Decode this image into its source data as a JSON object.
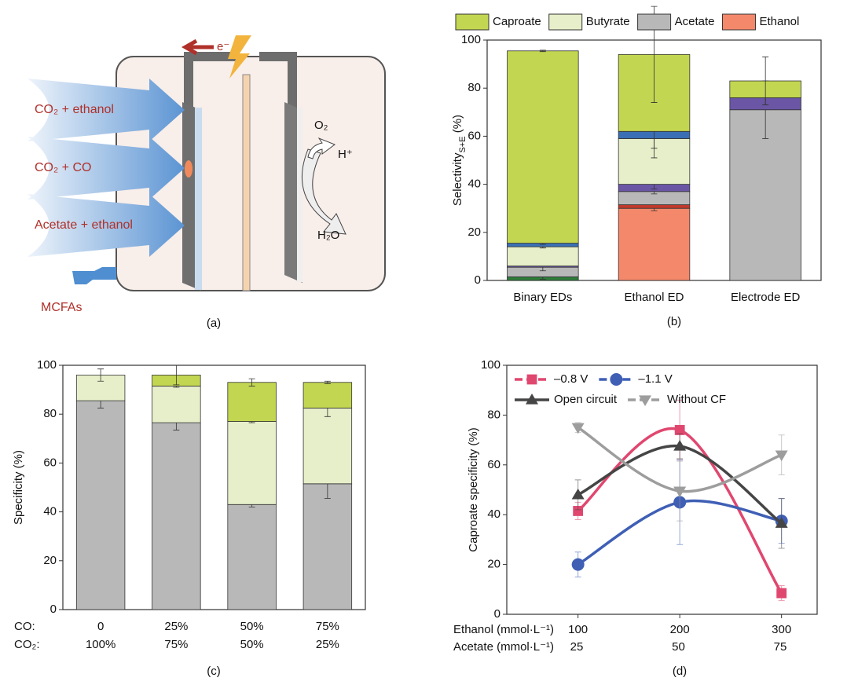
{
  "diagram": {
    "inputs": [
      "CO₂ + ethanol",
      "CO₂ + CO",
      "Acetate + ethanol"
    ],
    "product": "MCFAs",
    "electron": "e⁻",
    "oxygen": "O₂",
    "proton": "H⁺",
    "water": "H₂O",
    "label": "(a)"
  },
  "chart_data": [
    {
      "type": "stacked_bar",
      "label": "(b)",
      "ylabel": [
        "Selectivity",
        "S+E",
        " (%)"
      ],
      "categories": [
        "Binary EDs",
        "Ethanol ED",
        "Electrode ED"
      ],
      "ylim": [
        0,
        100
      ],
      "yticks": [
        0,
        20,
        40,
        60,
        80,
        100
      ],
      "legend": "top",
      "series": [
        {
          "name": null,
          "color": "#2f7d3a",
          "values": [
            1.5,
            0,
            0
          ],
          "errors": [
            1,
            null,
            null
          ]
        },
        {
          "name": "Ethanol",
          "color": "#f4886a",
          "values": [
            0,
            30,
            0
          ],
          "errors": [
            null,
            1,
            null
          ]
        },
        {
          "name": null,
          "color": "#c0392b",
          "values": [
            0,
            1.5,
            0
          ],
          "errors": [
            null,
            null,
            null
          ]
        },
        {
          "name": "Acetate",
          "color": "#b8b8b8",
          "values": [
            4,
            5.5,
            71
          ],
          "errors": [
            1.5,
            1,
            12
          ]
        },
        {
          "name": null,
          "color": "#6a56a5",
          "values": [
            0.5,
            3,
            5
          ],
          "errors": [
            null,
            2,
            3
          ]
        },
        {
          "name": "Butyrate",
          "color": "#e6efc9",
          "values": [
            8,
            19,
            0
          ],
          "errors": [
            0.5,
            4,
            null
          ]
        },
        {
          "name": null,
          "color": "#3a6fb5",
          "values": [
            1.5,
            3,
            0
          ],
          "errors": [
            0.5,
            11,
            null
          ]
        },
        {
          "name": "Caproate",
          "color": "#c3d651",
          "values": [
            80,
            32,
            7
          ],
          "errors": [
            0.3,
            20,
            10
          ]
        }
      ]
    },
    {
      "type": "stacked_bar",
      "label": "(c)",
      "ylabel": [
        "Specificity (%)"
      ],
      "categories": [
        "0",
        "25%",
        "50%",
        "75%"
      ],
      "categories2": [
        "100%",
        "75%",
        "50%",
        "25%"
      ],
      "category_headers": [
        "CO:",
        "CO₂:"
      ],
      "ylim": [
        0,
        100
      ],
      "yticks": [
        0,
        20,
        40,
        60,
        80,
        100
      ],
      "series": [
        {
          "name": null,
          "color": "#b8b8b8",
          "values": [
            85.5,
            76.5,
            43,
            51.5
          ],
          "errors": [
            3,
            3,
            1,
            6
          ]
        },
        {
          "name": null,
          "color": "#e6efc9",
          "values": [
            10.5,
            15,
            34,
            31
          ],
          "errors": [
            2.5,
            0.5,
            0.5,
            3.5
          ]
        },
        {
          "name": null,
          "color": "#c3d651",
          "values": [
            0,
            4.5,
            16,
            10.5
          ],
          "errors": [
            null,
            4,
            1.5,
            0.5
          ]
        }
      ]
    },
    {
      "type": "line",
      "label": "(d)",
      "ylabel": [
        "Caproate specificity (%)"
      ],
      "x": [
        100,
        200,
        300
      ],
      "xlim": [
        30,
        335
      ],
      "xticks": [
        100,
        200,
        300
      ],
      "xlabel": "Ethanol (mmol·L⁻¹)",
      "x_row2_label": "Acetate (mmol·L⁻¹)",
      "x_row2": [
        25,
        50,
        75
      ],
      "ylim": [
        0,
        100
      ],
      "yticks": [
        0,
        20,
        40,
        60,
        80,
        100
      ],
      "legend": "upper left",
      "series": [
        {
          "name": "–0.8 V",
          "color": "#e0476f",
          "marker": "square",
          "dashed_legend": true,
          "values": [
            41.5,
            74,
            8.5
          ],
          "errors": [
            3.5,
            12,
            3
          ]
        },
        {
          "name": "–1.1 V",
          "color": "#3f5fb5",
          "marker": "circle",
          "dashed_legend": true,
          "values": [
            20,
            45,
            37.5
          ],
          "errors": [
            5,
            17,
            9
          ]
        },
        {
          "name": "Open circuit",
          "color": "#454545",
          "marker": "triangle-up",
          "dashed_legend": false,
          "values": [
            48,
            67.5,
            36.5
          ],
          "errors": [
            6,
            5,
            10
          ]
        },
        {
          "name": "Without CF",
          "color": "#9d9d9d",
          "marker": "triangle-down",
          "dashed_legend": true,
          "values": [
            75,
            49.5,
            64
          ],
          "errors": [
            2,
            12,
            8
          ]
        }
      ]
    }
  ]
}
